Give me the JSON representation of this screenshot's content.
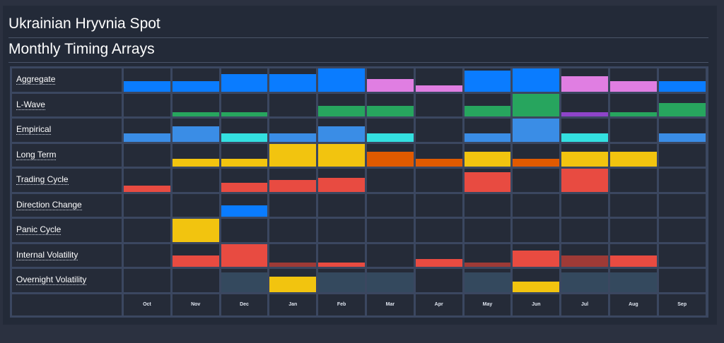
{
  "header": {
    "title": "Ukrainian Hryvnia Spot",
    "subtitle": "Monthly Timing Arrays"
  },
  "colors": {
    "blue": "#0a7cff",
    "lightblue": "#3a8de6",
    "pink": "#e07ee2",
    "green": "#27a55e",
    "purple": "#8e44c9",
    "cyan": "#33e0e0",
    "yellow": "#f2c40f",
    "orange": "#e05a00",
    "red": "#e84b41",
    "darkred": "#9e3a36",
    "slate": "#34495e"
  },
  "chart_data": {
    "type": "heatmap",
    "title": "Monthly Timing Arrays",
    "columns": [
      "Oct",
      "Nov",
      "Dec",
      "Jan",
      "Feb",
      "Mar",
      "Apr",
      "May",
      "Jun",
      "Jul",
      "Aug",
      "Sep"
    ],
    "rows": [
      {
        "label": "Aggregate",
        "values": [
          0.45,
          0.45,
          0.75,
          0.75,
          1.0,
          0.55,
          0.25,
          0.9,
          1.0,
          0.65,
          0.45,
          0.45
        ],
        "colors": [
          "blue",
          "blue",
          "blue",
          "blue",
          "blue",
          "pink",
          "pink",
          "blue",
          "blue",
          "pink",
          "pink",
          "blue"
        ]
      },
      {
        "label": "L-Wave",
        "values": [
          0,
          0.2,
          0.2,
          0,
          0.45,
          0.45,
          0,
          0.45,
          1.0,
          0.2,
          0.2,
          0.6
        ],
        "colors": [
          null,
          "green",
          "green",
          null,
          "green",
          "green",
          null,
          "green",
          "green",
          "purple",
          "green",
          "green"
        ]
      },
      {
        "label": "Empirical",
        "values": [
          0.35,
          0.65,
          0.35,
          0.35,
          0.65,
          0.35,
          0,
          0.35,
          1.0,
          0.35,
          0,
          0.35
        ],
        "colors": [
          "lightblue",
          "lightblue",
          "cyan",
          "lightblue",
          "lightblue",
          "cyan",
          null,
          "lightblue",
          "lightblue",
          "cyan",
          null,
          "lightblue"
        ]
      },
      {
        "label": "Long Term",
        "values": [
          0,
          0.35,
          0.35,
          1.0,
          1.0,
          0.65,
          0.35,
          0.65,
          0.35,
          0.65,
          0.65,
          0
        ],
        "colors": [
          null,
          "yellow",
          "yellow",
          "yellow",
          "yellow",
          "orange",
          "orange",
          "yellow",
          "orange",
          "yellow",
          "yellow",
          null
        ]
      },
      {
        "label": "Trading Cycle",
        "values": [
          0.25,
          0,
          0.4,
          0.5,
          0.6,
          0,
          0,
          0.85,
          0,
          1.0,
          0,
          0
        ],
        "colors": [
          "red",
          null,
          "red",
          "red",
          "red",
          null,
          null,
          "red",
          null,
          "red",
          null,
          null
        ]
      },
      {
        "label": "Direction Change",
        "values": [
          0,
          0,
          0.5,
          0,
          0,
          0,
          0,
          0,
          0,
          0,
          0,
          0
        ],
        "colors": [
          null,
          null,
          "blue",
          null,
          null,
          null,
          null,
          null,
          null,
          null,
          null,
          null
        ]
      },
      {
        "label": "Panic Cycle",
        "values": [
          0,
          1.0,
          0,
          0,
          0,
          0,
          0,
          0,
          0,
          0,
          0,
          0
        ],
        "colors": [
          null,
          "yellow",
          null,
          null,
          null,
          null,
          null,
          null,
          null,
          null,
          null,
          null
        ]
      },
      {
        "label": "Internal Volatility",
        "values": [
          0,
          0.5,
          1.0,
          0.2,
          0.2,
          0,
          0.35,
          0.2,
          0.7,
          0.5,
          0.5,
          0
        ],
        "colors": [
          null,
          "red",
          "red",
          "darkred",
          "red",
          null,
          "red",
          "darkred",
          "red",
          "darkred",
          "red",
          null
        ]
      },
      {
        "label": "Overnight Volatility",
        "values": [
          0,
          0,
          0.85,
          0.65,
          0.85,
          0.85,
          0,
          0.85,
          0.45,
          0.85,
          0.85,
          0
        ],
        "colors": [
          null,
          null,
          "slate",
          "yellow",
          "slate",
          "slate",
          null,
          "slate",
          "yellow",
          "slate",
          "slate",
          null
        ]
      }
    ]
  }
}
